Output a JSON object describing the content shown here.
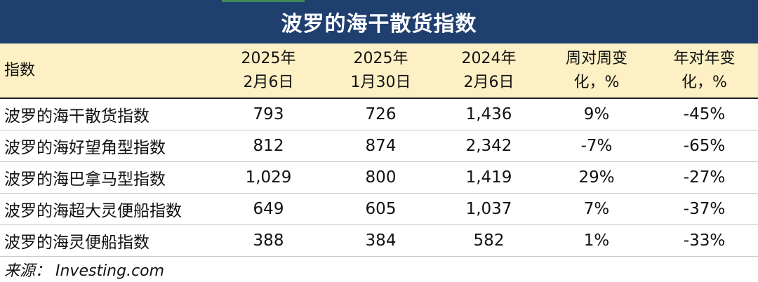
{
  "title": "波罗的海干散货指数",
  "header": {
    "label": "指数",
    "columns": [
      {
        "line1": "2025年",
        "line2": "2月6日"
      },
      {
        "line1": "2025年",
        "line2": "1月30日"
      },
      {
        "line1": "2024年",
        "line2": "2月6日"
      },
      {
        "line1": "周对周变",
        "line2": "化，%"
      },
      {
        "line1": "年对年变",
        "line2": "化，%"
      }
    ]
  },
  "rows": [
    {
      "name": "波罗的海干散货指数",
      "values": [
        "793",
        "726",
        "1,436",
        "9%",
        "-45%"
      ]
    },
    {
      "name": "波罗的海好望角型指数",
      "values": [
        "812",
        "874",
        "2,342",
        "-7%",
        "-65%"
      ]
    },
    {
      "name": "波罗的海巴拿马型指数",
      "values": [
        "1,029",
        "800",
        "1,419",
        "29%",
        "-27%"
      ]
    },
    {
      "name": "波罗的海超大灵便船指数",
      "values": [
        "649",
        "605",
        "1,037",
        "7%",
        "-37%"
      ]
    },
    {
      "name": "波罗的海灵便船指数",
      "values": [
        "388",
        "384",
        "582",
        "1%",
        "-33%"
      ]
    }
  ],
  "source": "来源： Investing.com",
  "colors": {
    "title_bg": "#1f3f6f",
    "header_bg": "#fdf0c4",
    "accent": "#3e8a5a"
  }
}
